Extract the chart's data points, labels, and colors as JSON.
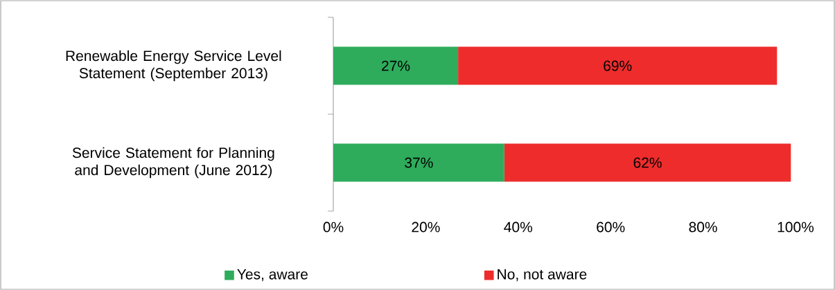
{
  "chart_data": {
    "type": "bar",
    "orientation": "horizontal",
    "stacked": true,
    "categories": [
      "Renewable Energy Service Level Statement (September 2013)",
      "Service Statement for Planning and Development (June 2012)"
    ],
    "series": [
      {
        "name": "Yes, aware",
        "color": "#2eac5c",
        "values": [
          27,
          37
        ],
        "value_labels": [
          "27%",
          "37%"
        ]
      },
      {
        "name": "No, not aware",
        "color": "#ee2c2c",
        "values": [
          69,
          62
        ],
        "value_labels": [
          "69%",
          "62%"
        ]
      }
    ],
    "xlim": [
      0,
      100
    ],
    "xticks": [
      {
        "value": 0,
        "label": "0%"
      },
      {
        "value": 20,
        "label": "20%"
      },
      {
        "value": 40,
        "label": "40%"
      },
      {
        "value": 60,
        "label": "60%"
      },
      {
        "value": 80,
        "label": "80%"
      },
      {
        "value": 100,
        "label": "100%"
      }
    ],
    "grid": false,
    "legend": "bottom"
  }
}
